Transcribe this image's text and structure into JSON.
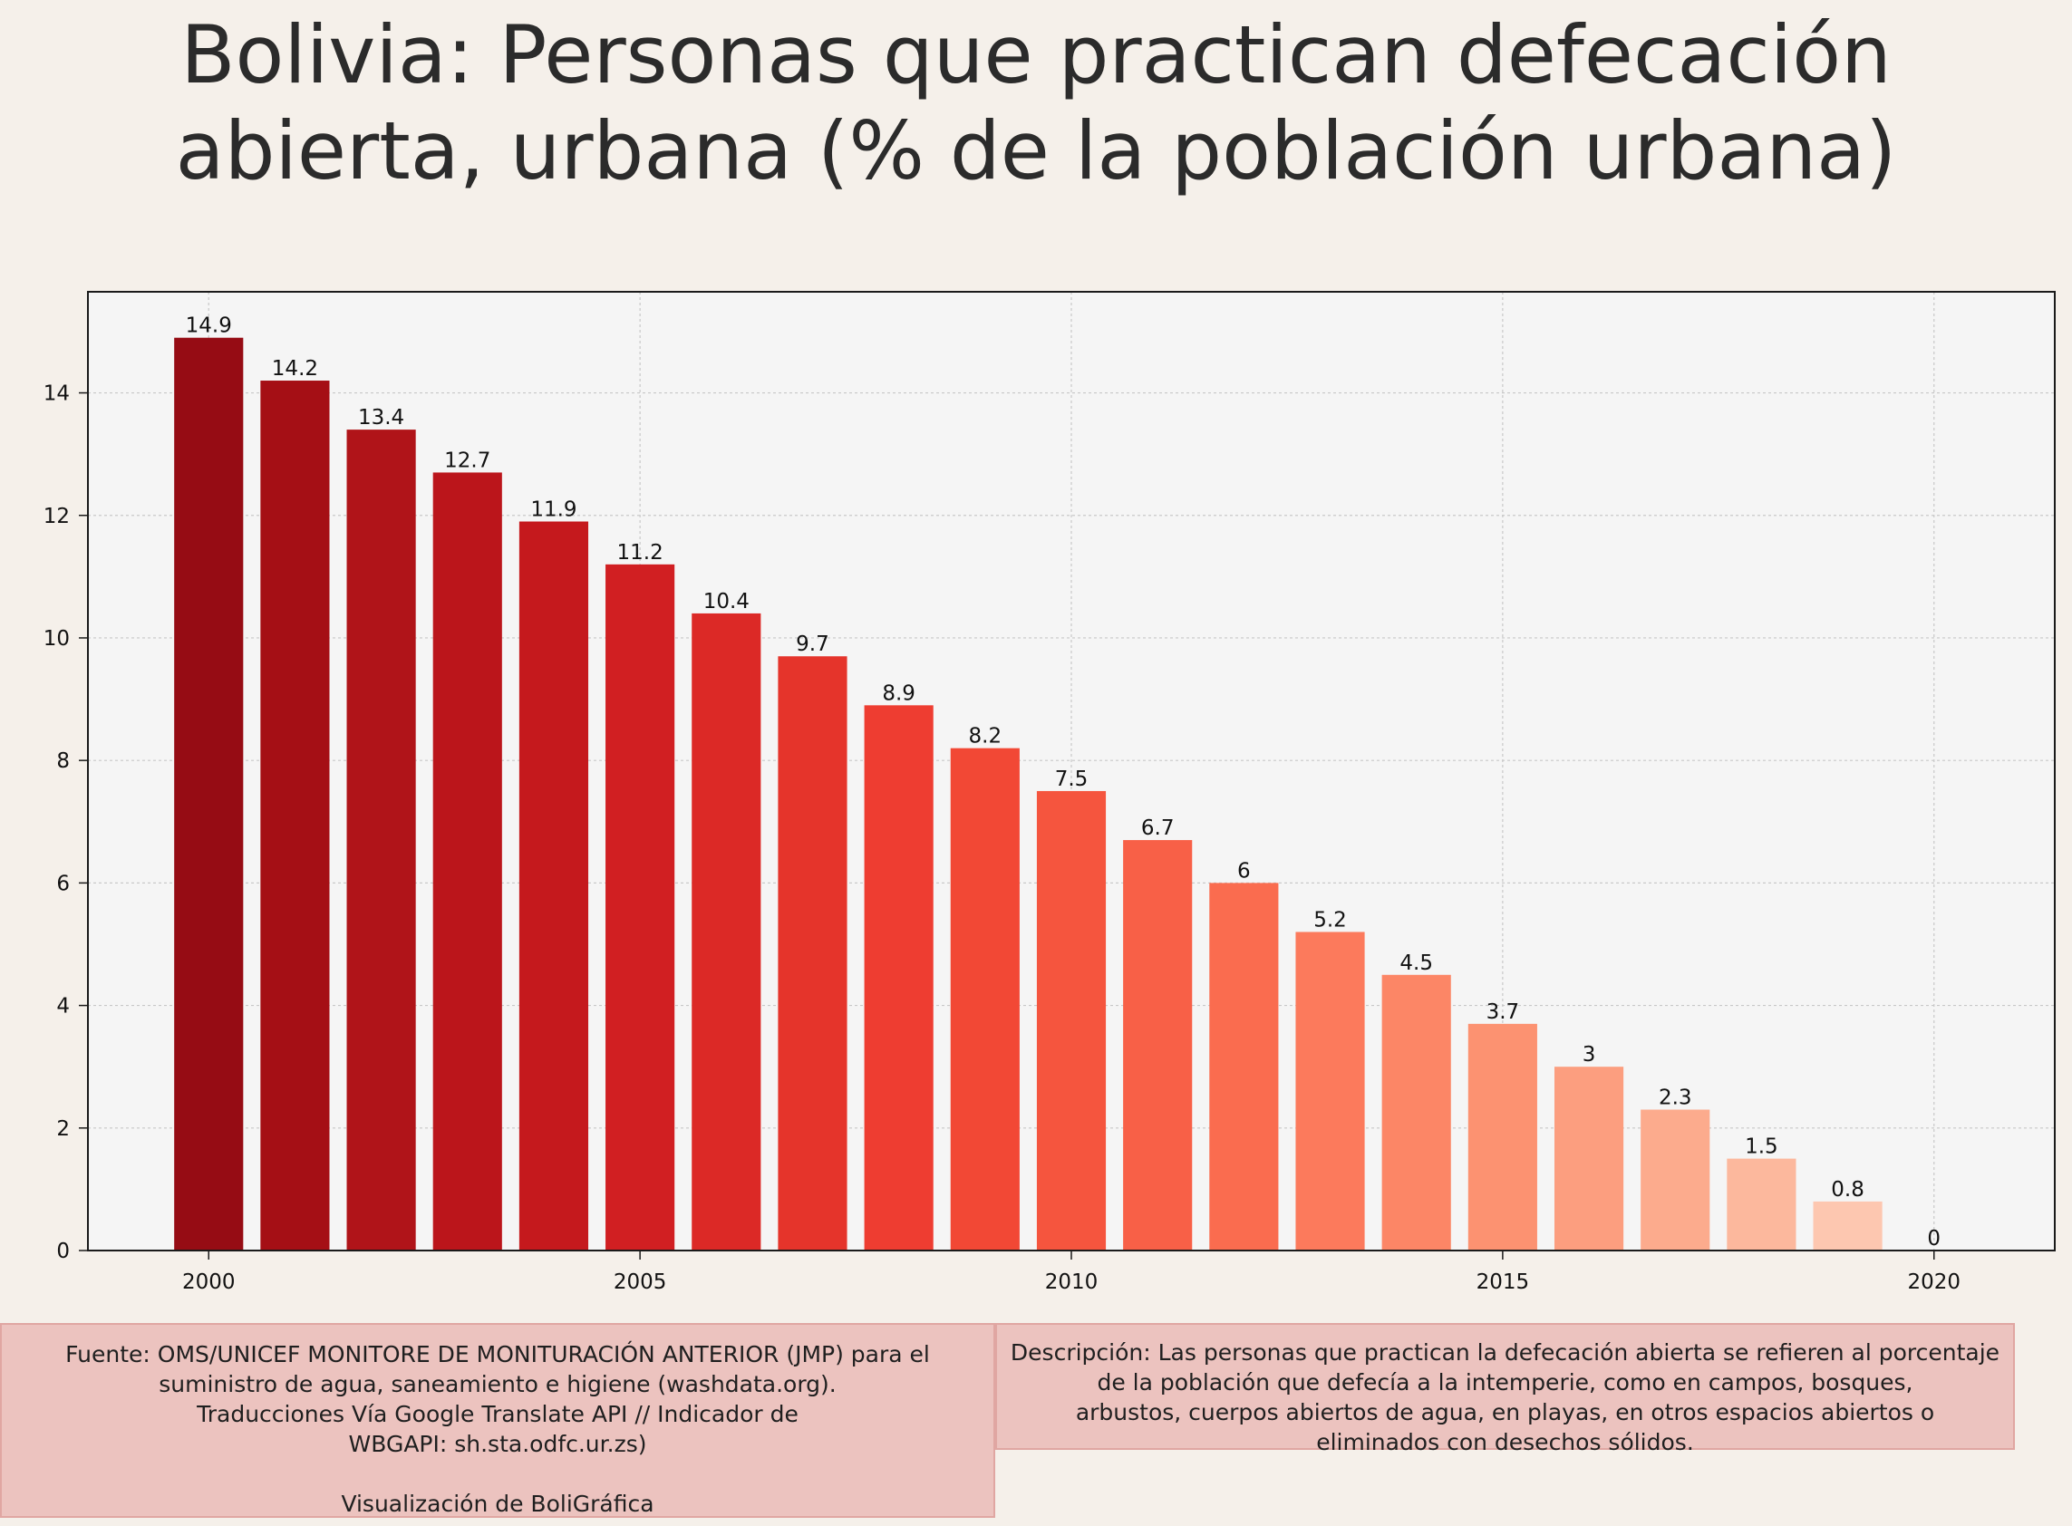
{
  "chart_data": {
    "type": "bar",
    "title": "Bolivia:  Personas que practican defecación abierta, urbana (% de la población urbana)",
    "title_lines": [
      "Bolivia:  Personas que practican defecación",
      "abierta, urbana (% de la población urbana)"
    ],
    "xlabel": "",
    "ylabel": "",
    "x": [
      2000,
      2001,
      2002,
      2003,
      2004,
      2005,
      2006,
      2007,
      2008,
      2009,
      2010,
      2011,
      2012,
      2013,
      2014,
      2015,
      2016,
      2017,
      2018,
      2019,
      2020
    ],
    "values": [
      14.9,
      14.2,
      13.4,
      12.7,
      11.9,
      11.2,
      10.4,
      9.7,
      8.9,
      8.2,
      7.5,
      6.7,
      6,
      5.2,
      4.5,
      3.7,
      3,
      2.3,
      1.5,
      0.8,
      0
    ],
    "value_labels": [
      "14.9",
      "14.2",
      "13.4",
      "12.7",
      "11.9",
      "11.2",
      "10.4",
      "9.7",
      "8.9",
      "8.2",
      "7.5",
      "6.7",
      "6",
      "5.2",
      "4.5",
      "3.7",
      "3",
      "2.3",
      "1.5",
      "0.8",
      "0"
    ],
    "xlim": [
      1998.6,
      2021.4
    ],
    "ylim": [
      0,
      15.65
    ],
    "xticks": [
      2000,
      2005,
      2010,
      2015,
      2020
    ],
    "yticks": [
      0,
      2,
      4,
      6,
      8,
      10,
      12,
      14
    ],
    "grid": true,
    "colors": [
      "#960c14",
      "#a50f15",
      "#b01419",
      "#bb151b",
      "#c5191d",
      "#d11f22",
      "#dc2926",
      "#e5342b",
      "#ee3d31",
      "#f24835",
      "#f5553e",
      "#f86047",
      "#fa6c4f",
      "#fc7a5c",
      "#fc8666",
      "#fc9271",
      "#fc9e7f",
      "#fcab8d",
      "#fcb89d",
      "#fdc7b0",
      "#fdd3c1"
    ]
  },
  "colors": {
    "background": "#f5f0ea",
    "plot_background": "#f5f5f5",
    "box_fill": "#ecc3bf",
    "box_border": "#e0a6a2"
  },
  "footer": {
    "source_lines": [
      "Fuente: OMS/UNICEF MONITORE DE MONITURACIÓN ANTERIOR (JMP) para el",
      "suministro de agua, saneamiento e higiene (washdata.org).",
      "Traducciones Vía Google Translate API // Indicador de",
      "WBGAPI: sh.sta.odfc.ur.zs)"
    ],
    "credit": "Visualización de BoliGráfica",
    "description_lines": [
      "Descripción: Las personas que practican la defecación abierta se refieren al porcentaje",
      "de la población que defecía a la intemperie, como en campos, bosques,",
      "arbustos, cuerpos abiertos de agua, en playas, en otros espacios abiertos o",
      "eliminados con desechos sólidos."
    ]
  }
}
